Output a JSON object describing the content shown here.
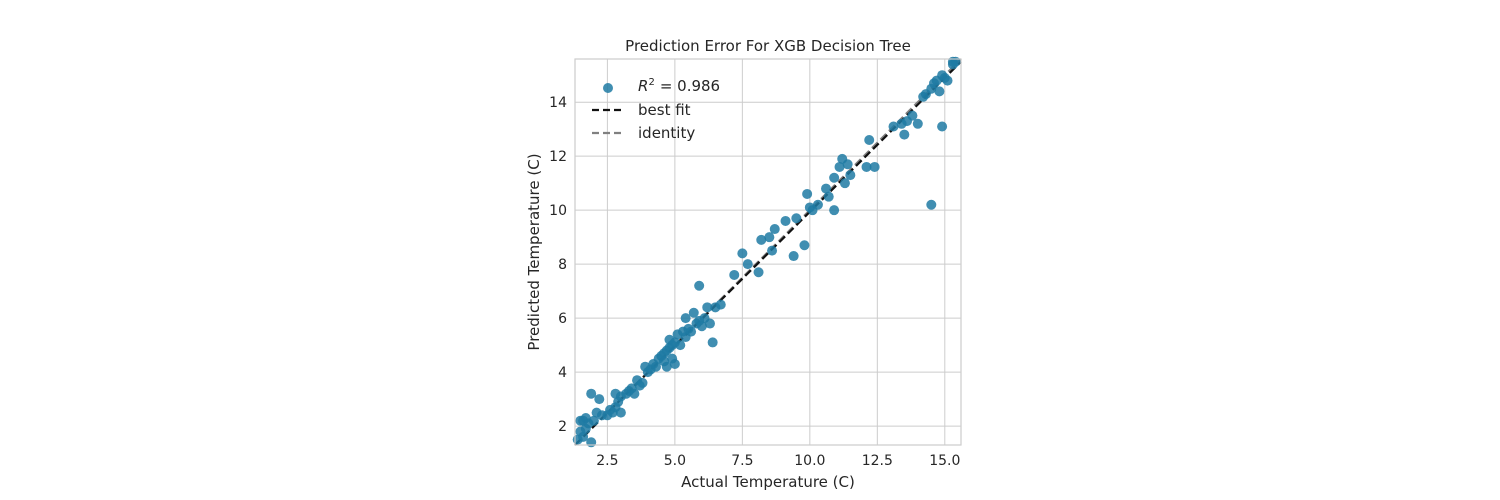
{
  "chart_data": {
    "type": "scatter",
    "title": "Prediction Error For XGB Decision Tree",
    "xlabel": "Actual Temperature (C)",
    "ylabel": "Predicted Temperature (C)",
    "xlim": [
      1.3,
      15.6
    ],
    "ylim": [
      1.3,
      15.6
    ],
    "xticks": [
      2.5,
      5.0,
      7.5,
      10.0,
      12.5,
      15.0
    ],
    "xtick_labels": [
      "2.5",
      "5.0",
      "7.5",
      "10.0",
      "12.5",
      "15.0"
    ],
    "yticks": [
      2,
      4,
      6,
      8,
      10,
      12,
      14
    ],
    "ytick_labels": [
      "2",
      "4",
      "6",
      "8",
      "10",
      "12",
      "14"
    ],
    "grid": true,
    "legend": {
      "placement": "top-left",
      "entries": [
        {
          "label_prefix": "R",
          "label_sup": "2",
          "label_value": "= 0.986",
          "marker": "circle",
          "color": "#1f7aa3"
        },
        {
          "label": "best fit",
          "style": "dashed",
          "color": "#111111"
        },
        {
          "label": "identity",
          "style": "dashed",
          "color": "#808080"
        }
      ]
    },
    "colors": {
      "points": "#1f7aa3",
      "best_fit": "#111111",
      "identity": "#808080",
      "grid": "#cccccc",
      "frame": "#cccccc"
    },
    "best_fit_line": {
      "x": [
        1.3,
        15.6
      ],
      "y": [
        1.3,
        15.5
      ]
    },
    "identity_line": {
      "x": [
        1.3,
        15.6
      ],
      "y": [
        1.3,
        15.6
      ]
    },
    "points": [
      [
        1.4,
        1.5
      ],
      [
        1.5,
        1.8
      ],
      [
        1.5,
        2.2
      ],
      [
        1.6,
        2.2
      ],
      [
        1.6,
        1.6
      ],
      [
        1.7,
        2.3
      ],
      [
        1.7,
        1.9
      ],
      [
        1.8,
        2.1
      ],
      [
        1.9,
        3.2
      ],
      [
        1.9,
        1.4
      ],
      [
        2.0,
        2.2
      ],
      [
        2.1,
        2.5
      ],
      [
        2.2,
        3.0
      ],
      [
        2.3,
        2.4
      ],
      [
        2.5,
        2.4
      ],
      [
        2.6,
        2.6
      ],
      [
        2.7,
        2.5
      ],
      [
        2.8,
        3.2
      ],
      [
        2.8,
        2.7
      ],
      [
        2.9,
        2.9
      ],
      [
        3.0,
        2.5
      ],
      [
        3.0,
        3.1
      ],
      [
        3.2,
        3.2
      ],
      [
        3.3,
        3.3
      ],
      [
        3.4,
        3.4
      ],
      [
        3.5,
        3.2
      ],
      [
        3.6,
        3.7
      ],
      [
        3.7,
        3.5
      ],
      [
        3.8,
        3.6
      ],
      [
        3.9,
        4.2
      ],
      [
        4.0,
        4.0
      ],
      [
        4.1,
        4.1
      ],
      [
        4.2,
        4.3
      ],
      [
        4.3,
        4.2
      ],
      [
        4.4,
        4.5
      ],
      [
        4.5,
        4.6
      ],
      [
        4.6,
        4.4
      ],
      [
        4.6,
        4.7
      ],
      [
        4.7,
        4.2
      ],
      [
        4.7,
        4.8
      ],
      [
        4.8,
        4.9
      ],
      [
        4.8,
        5.2
      ],
      [
        4.9,
        4.5
      ],
      [
        4.9,
        5.0
      ],
      [
        5.0,
        5.1
      ],
      [
        5.0,
        4.3
      ],
      [
        5.1,
        5.4
      ],
      [
        5.2,
        5.0
      ],
      [
        5.3,
        5.5
      ],
      [
        5.4,
        5.3
      ],
      [
        5.4,
        6.0
      ],
      [
        5.5,
        5.6
      ],
      [
        5.6,
        5.5
      ],
      [
        5.7,
        6.2
      ],
      [
        5.8,
        5.8
      ],
      [
        5.9,
        5.9
      ],
      [
        5.9,
        7.2
      ],
      [
        6.0,
        5.7
      ],
      [
        6.1,
        6.0
      ],
      [
        6.2,
        6.4
      ],
      [
        6.3,
        5.8
      ],
      [
        6.4,
        5.1
      ],
      [
        6.5,
        6.4
      ],
      [
        6.7,
        6.5
      ],
      [
        7.2,
        7.6
      ],
      [
        7.5,
        8.4
      ],
      [
        7.7,
        8.0
      ],
      [
        8.1,
        7.7
      ],
      [
        8.2,
        8.9
      ],
      [
        8.5,
        9.0
      ],
      [
        8.6,
        8.5
      ],
      [
        8.7,
        9.3
      ],
      [
        9.1,
        9.6
      ],
      [
        9.4,
        8.3
      ],
      [
        9.5,
        9.7
      ],
      [
        9.8,
        8.7
      ],
      [
        9.9,
        10.6
      ],
      [
        10.0,
        10.1
      ],
      [
        10.1,
        10.0
      ],
      [
        10.3,
        10.2
      ],
      [
        10.6,
        10.8
      ],
      [
        10.7,
        10.5
      ],
      [
        10.9,
        10.0
      ],
      [
        10.9,
        11.2
      ],
      [
        11.1,
        11.6
      ],
      [
        11.2,
        11.9
      ],
      [
        11.3,
        11.0
      ],
      [
        11.4,
        11.7
      ],
      [
        11.5,
        11.3
      ],
      [
        12.1,
        11.6
      ],
      [
        12.2,
        12.6
      ],
      [
        12.4,
        11.6
      ],
      [
        13.1,
        13.1
      ],
      [
        13.4,
        13.2
      ],
      [
        13.5,
        12.8
      ],
      [
        13.6,
        13.3
      ],
      [
        13.8,
        13.5
      ],
      [
        14.0,
        13.2
      ],
      [
        14.2,
        14.2
      ],
      [
        14.3,
        14.3
      ],
      [
        14.5,
        14.5
      ],
      [
        14.5,
        10.2
      ],
      [
        14.6,
        14.7
      ],
      [
        14.7,
        14.8
      ],
      [
        14.8,
        14.4
      ],
      [
        14.9,
        13.1
      ],
      [
        14.9,
        15.0
      ],
      [
        15.0,
        14.9
      ],
      [
        15.1,
        14.8
      ],
      [
        15.3,
        15.4
      ],
      [
        15.4,
        15.5
      ],
      [
        15.3,
        15.5
      ]
    ]
  }
}
